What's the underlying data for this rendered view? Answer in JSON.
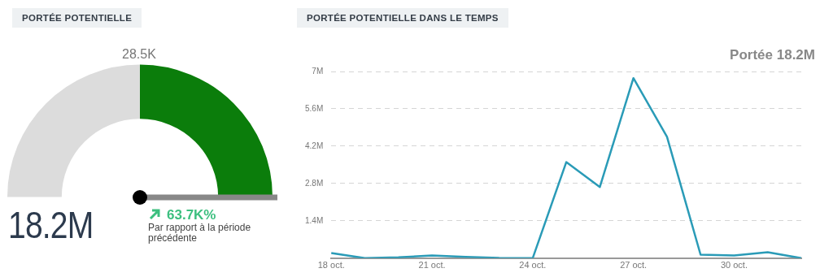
{
  "chart_data": [
    {
      "type": "donut",
      "title": "PORTÉE POTENTIELLE",
      "categories": [
        null,
        null
      ],
      "values": [
        50,
        50
      ],
      "colors": [
        "#dcdcdc",
        "#0b7d0b"
      ],
      "annotations": [
        "28.5K",
        "18.2M",
        "63.7K%",
        "Par rapport à la période précédente"
      ]
    },
    {
      "type": "line",
      "title": "PORTÉE POTENTIELLE DANS LE TEMPS",
      "categories": [
        "18 oct.",
        null,
        null,
        "21 oct.",
        null,
        null,
        "24 oct.",
        null,
        null,
        "27 oct.",
        null,
        null,
        "30 oct.",
        null,
        null
      ],
      "series": [
        {
          "color": "#2a9bb7",
          "values": [
            190000,
            0,
            30000,
            100000,
            50000,
            10000,
            0,
            3600000,
            2670000,
            6750000,
            4550000,
            130000,
            100000,
            220000,
            0
          ]
        }
      ],
      "ylim": [
        0,
        7000000
      ],
      "yticks": [
        {
          "value": 0,
          "label": null
        },
        {
          "value": 1400000,
          "label": "1.4M"
        },
        {
          "value": 2800000,
          "label": "2.8M"
        },
        {
          "value": 4200000,
          "label": "4.2M"
        },
        {
          "value": 5600000,
          "label": "5.6M"
        },
        {
          "value": 7000000,
          "label": "7M"
        }
      ],
      "grid": "y",
      "marker": "none",
      "annotations": [
        "Portée 18.2M"
      ]
    }
  ]
}
